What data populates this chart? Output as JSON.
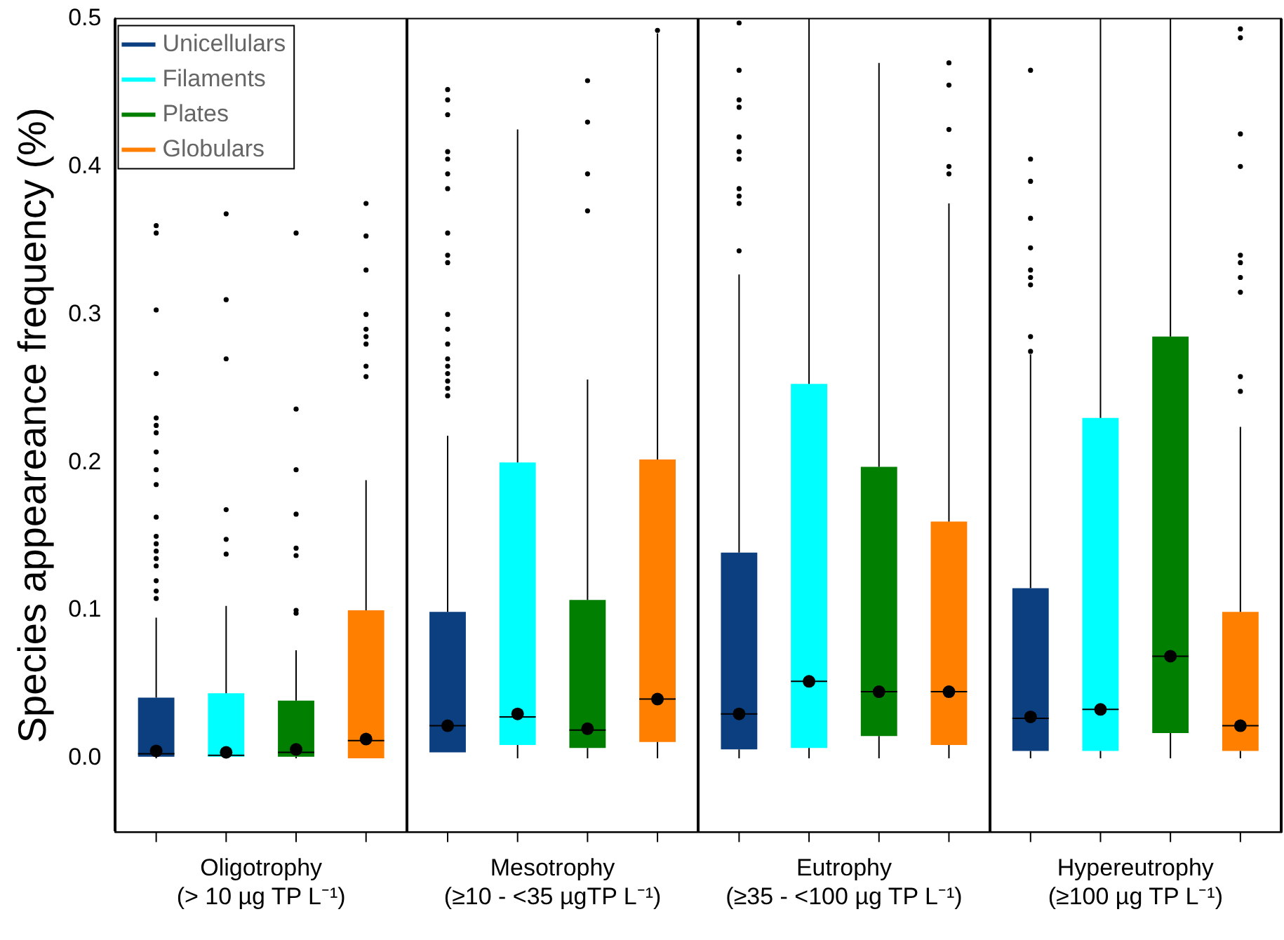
{
  "chart_data": {
    "type": "box",
    "ylabel": "Species appeareance frequency (%)",
    "categories": [
      "Oligotrophy\n(> 10 µg TP L⁻¹)",
      "Mesotrophy\n(≥10 - <35 µgTP L⁻¹)",
      "Eutrophy\n(≥35 - <100 µg TP L⁻¹)",
      "Hypereutrophy\n(≥100 µg TP L⁻¹)"
    ],
    "ylim": [
      -0.05,
      0.5
    ],
    "yticks": [
      {
        "value": 0,
        "label": "0.0"
      },
      0.1,
      0.2,
      0.3,
      0.4,
      0.5
    ],
    "grid": "x",
    "legend": "top left",
    "series": [
      {
        "name": "Unicellulars",
        "color": "#0b3f80",
        "boxes": [
          {
            "low": 0,
            "q1": 0.001,
            "median": 0.003,
            "q3": 0.041,
            "high": 0.095,
            "mean": 0.005,
            "outliers": [
              0.36,
              0.355,
              0.303,
              0.26,
              0.23,
              0.225,
              0.22,
              0.207,
              0.195,
              0.185,
              0.163,
              0.15,
              0.145,
              0.14,
              0.135,
              0.13,
              0.12,
              0.113,
              0.108
            ]
          },
          {
            "low": 0.004,
            "q1": 0.004,
            "median": 0.022,
            "q3": 0.099,
            "high": 0.218,
            "mean": 0.022,
            "outliers": [
              0.452,
              0.445,
              0.435,
              0.41,
              0.405,
              0.395,
              0.385,
              0.355,
              0.34,
              0.335,
              0.3,
              0.29,
              0.28,
              0.27,
              0.265,
              0.26,
              0.255,
              0.25,
              0.245
            ]
          },
          {
            "low": 0,
            "q1": 0.006,
            "median": 0.03,
            "q3": 0.139,
            "high": 0.327,
            "mean": 0.03,
            "outliers": [
              0.497,
              0.465,
              0.445,
              0.44,
              0.42,
              0.41,
              0.405,
              0.385,
              0.38,
              0.375,
              0.343
            ]
          },
          {
            "low": 0,
            "q1": 0.005,
            "median": 0.027,
            "q3": 0.115,
            "high": 0.273,
            "mean": 0.028,
            "outliers": [
              0.465,
              0.405,
              0.39,
              0.365,
              0.345,
              0.33,
              0.325,
              0.32,
              0.285,
              0.275
            ]
          }
        ]
      },
      {
        "name": "Filaments",
        "color": "#00ffff",
        "boxes": [
          {
            "low": 0,
            "q1": 0.001,
            "median": 0.002,
            "q3": 0.044,
            "high": 0.103,
            "mean": 0.004,
            "outliers": [
              0.368,
              0.31,
              0.27,
              0.168,
              0.148,
              0.138
            ]
          },
          {
            "low": 0,
            "q1": 0.009,
            "median": 0.028,
            "q3": 0.2,
            "high": 0.425,
            "mean": 0.03
          },
          {
            "low": 0,
            "q1": 0.007,
            "median": 0.052,
            "q3": 0.253,
            "high": 0.5,
            "mean": 0.052
          },
          {
            "low": 0,
            "q1": 0.005,
            "median": 0.033,
            "q3": 0.23,
            "high": 0.5,
            "mean": 0.033
          }
        ]
      },
      {
        "name": "Plates",
        "color": "#007f00",
        "boxes": [
          {
            "low": 0,
            "q1": 0.001,
            "median": 0.004,
            "q3": 0.039,
            "high": 0.073,
            "mean": 0.006,
            "outliers": [
              0.355,
              0.236,
              0.195,
              0.165,
              0.142,
              0.137,
              0.1,
              0.098
            ]
          },
          {
            "low": 0,
            "q1": 0.007,
            "median": 0.019,
            "q3": 0.107,
            "high": 0.256,
            "mean": 0.02,
            "outliers": [
              0.458,
              0.43,
              0.395,
              0.37
            ]
          },
          {
            "low": 0,
            "q1": 0.015,
            "median": 0.045,
            "q3": 0.197,
            "high": 0.47,
            "mean": 0.045
          },
          {
            "low": 0,
            "q1": 0.017,
            "median": 0.069,
            "q3": 0.285,
            "high": 0.5,
            "mean": 0.069
          }
        ]
      },
      {
        "name": "Globulars",
        "color": "#ff7f00",
        "boxes": [
          {
            "low": 0,
            "q1": 0.0,
            "median": 0.012,
            "q3": 0.1,
            "high": 0.188,
            "mean": 0.013,
            "outliers": [
              0.375,
              0.353,
              0.33,
              0.3,
              0.29,
              0.285,
              0.28,
              0.265,
              0.258
            ]
          },
          {
            "low": 0,
            "q1": 0.011,
            "median": 0.04,
            "q3": 0.202,
            "high": 0.49,
            "mean": 0.04,
            "outliers": [
              0.492
            ]
          },
          {
            "low": 0,
            "q1": 0.009,
            "median": 0.045,
            "q3": 0.16,
            "high": 0.375,
            "mean": 0.045,
            "outliers": [
              0.47,
              0.455,
              0.425,
              0.4,
              0.395
            ]
          },
          {
            "low": 0,
            "q1": 0.005,
            "median": 0.022,
            "q3": 0.099,
            "high": 0.224,
            "mean": 0.022,
            "outliers": [
              0.493,
              0.487,
              0.422,
              0.4,
              0.34,
              0.335,
              0.325,
              0.315,
              0.258,
              0.248
            ]
          }
        ]
      }
    ]
  }
}
